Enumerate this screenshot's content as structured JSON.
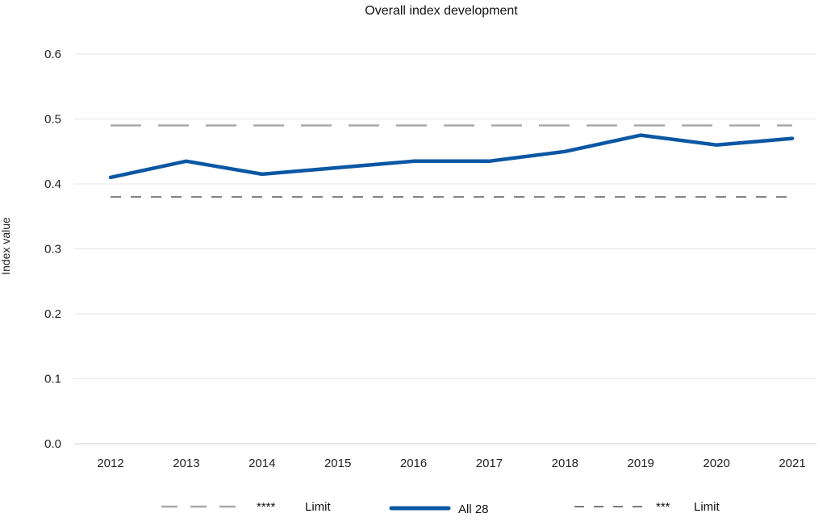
{
  "chart_data": {
    "type": "line",
    "title": "Overall index development",
    "xlabel": "",
    "ylabel": "Index value",
    "categories": [
      "2012",
      "2013",
      "2014",
      "2015",
      "2016",
      "2017",
      "2018",
      "2019",
      "2020",
      "2021"
    ],
    "ylim": [
      0,
      0.6
    ],
    "yticks": [
      "0.0",
      "0.1",
      "0.2",
      "0.3",
      "0.4",
      "0.5",
      "0.6"
    ],
    "grid": true,
    "legend_position": "bottom",
    "series": [
      {
        "name": "All 28",
        "values": [
          0.41,
          0.435,
          0.415,
          0.425,
          0.435,
          0.435,
          0.45,
          0.475,
          0.46,
          0.47
        ],
        "color": "#0b57a4",
        "style": "solid"
      }
    ],
    "reference_lines": [
      {
        "label_stars": "****",
        "label_text": "Limit",
        "value": 0.49,
        "color": "#a9a9a9",
        "style": "long-dash"
      },
      {
        "label_stars": "***",
        "label_text": "Limit",
        "value": 0.38,
        "color": "#7a7a7a",
        "style": "short-dash"
      }
    ]
  }
}
